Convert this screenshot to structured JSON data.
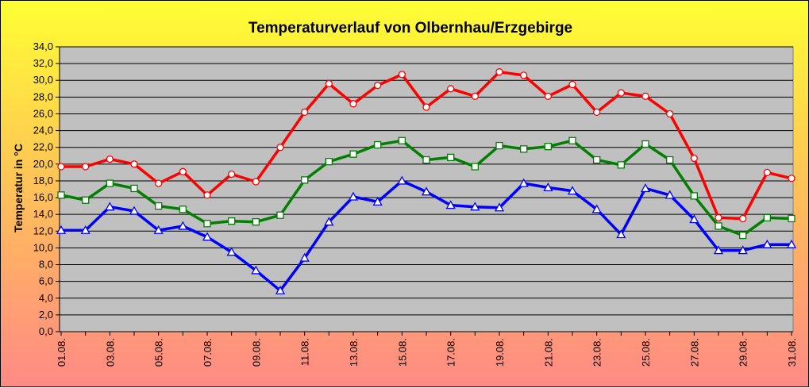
{
  "chart_data": {
    "type": "line",
    "title": "Temperaturverlauf von Olbernhau/Erzgebirge",
    "xlabel": "",
    "ylabel": "Temperatur in  °C",
    "ylim": [
      0,
      34
    ],
    "ytick_step": 2,
    "ytick_labels": [
      "0,0",
      "2,0",
      "4,0",
      "6,0",
      "8,0",
      "10,0",
      "12,0",
      "14,0",
      "16,0",
      "18,0",
      "20,0",
      "22,0",
      "24,0",
      "26,0",
      "28,0",
      "30,0",
      "32,0",
      "34,0"
    ],
    "categories": [
      "01.08.",
      "02.08.",
      "03.08.",
      "04.08.",
      "05.08.",
      "06.08.",
      "07.08.",
      "08.08.",
      "09.08.",
      "10.08.",
      "11.08.",
      "12.08.",
      "13.08.",
      "14.08.",
      "15.08.",
      "16.08.",
      "17.08.",
      "18.08.",
      "19.08.",
      "20.08.",
      "21.08.",
      "22.08.",
      "23.08.",
      "24.08.",
      "25.08.",
      "26.08.",
      "27.08.",
      "28.08.",
      "29.08.",
      "30.08.",
      "31.08."
    ],
    "xtick_labels": [
      "01.08.",
      "03.08.",
      "05.08.",
      "07.08.",
      "09.08.",
      "11.08.",
      "13.08.",
      "15.08.",
      "17.08.",
      "19.08.",
      "21.08.",
      "23.08.",
      "25.08.",
      "27.08.",
      "29.08.",
      "31.08."
    ],
    "grid": true,
    "plot_background": "#c0c0c0",
    "gridline_color": "#000000",
    "series": [
      {
        "color": "#ff0000",
        "marker": "circle",
        "values": [
          19.7,
          19.7,
          20.6,
          20.0,
          17.7,
          19.1,
          16.3,
          18.8,
          17.9,
          22.0,
          26.2,
          29.6,
          27.2,
          29.4,
          30.7,
          26.8,
          29.0,
          28.1,
          31.0,
          30.6,
          28.1,
          29.5,
          26.2,
          28.5,
          28.1,
          26.0,
          20.7,
          13.6,
          13.5,
          19.0,
          18.3
        ]
      },
      {
        "color": "#008000",
        "marker": "square",
        "values": [
          16.3,
          15.7,
          17.7,
          17.1,
          15.0,
          14.6,
          12.9,
          13.2,
          13.1,
          13.9,
          18.1,
          20.3,
          21.2,
          22.3,
          22.8,
          20.5,
          20.8,
          19.7,
          22.2,
          21.8,
          22.1,
          22.8,
          20.5,
          19.9,
          22.4,
          20.5,
          16.2,
          12.6,
          11.5,
          13.6,
          13.5
        ]
      },
      {
        "color": "#0000ff",
        "marker": "triangle",
        "values": [
          12.1,
          12.1,
          14.9,
          14.4,
          12.1,
          12.6,
          11.3,
          9.5,
          7.3,
          4.9,
          8.8,
          13.1,
          16.1,
          15.5,
          18.0,
          16.7,
          15.1,
          14.9,
          14.8,
          17.7,
          17.2,
          16.8,
          14.6,
          11.6,
          17.1,
          16.3,
          13.4,
          9.7,
          9.7,
          10.4,
          10.4
        ]
      }
    ]
  }
}
